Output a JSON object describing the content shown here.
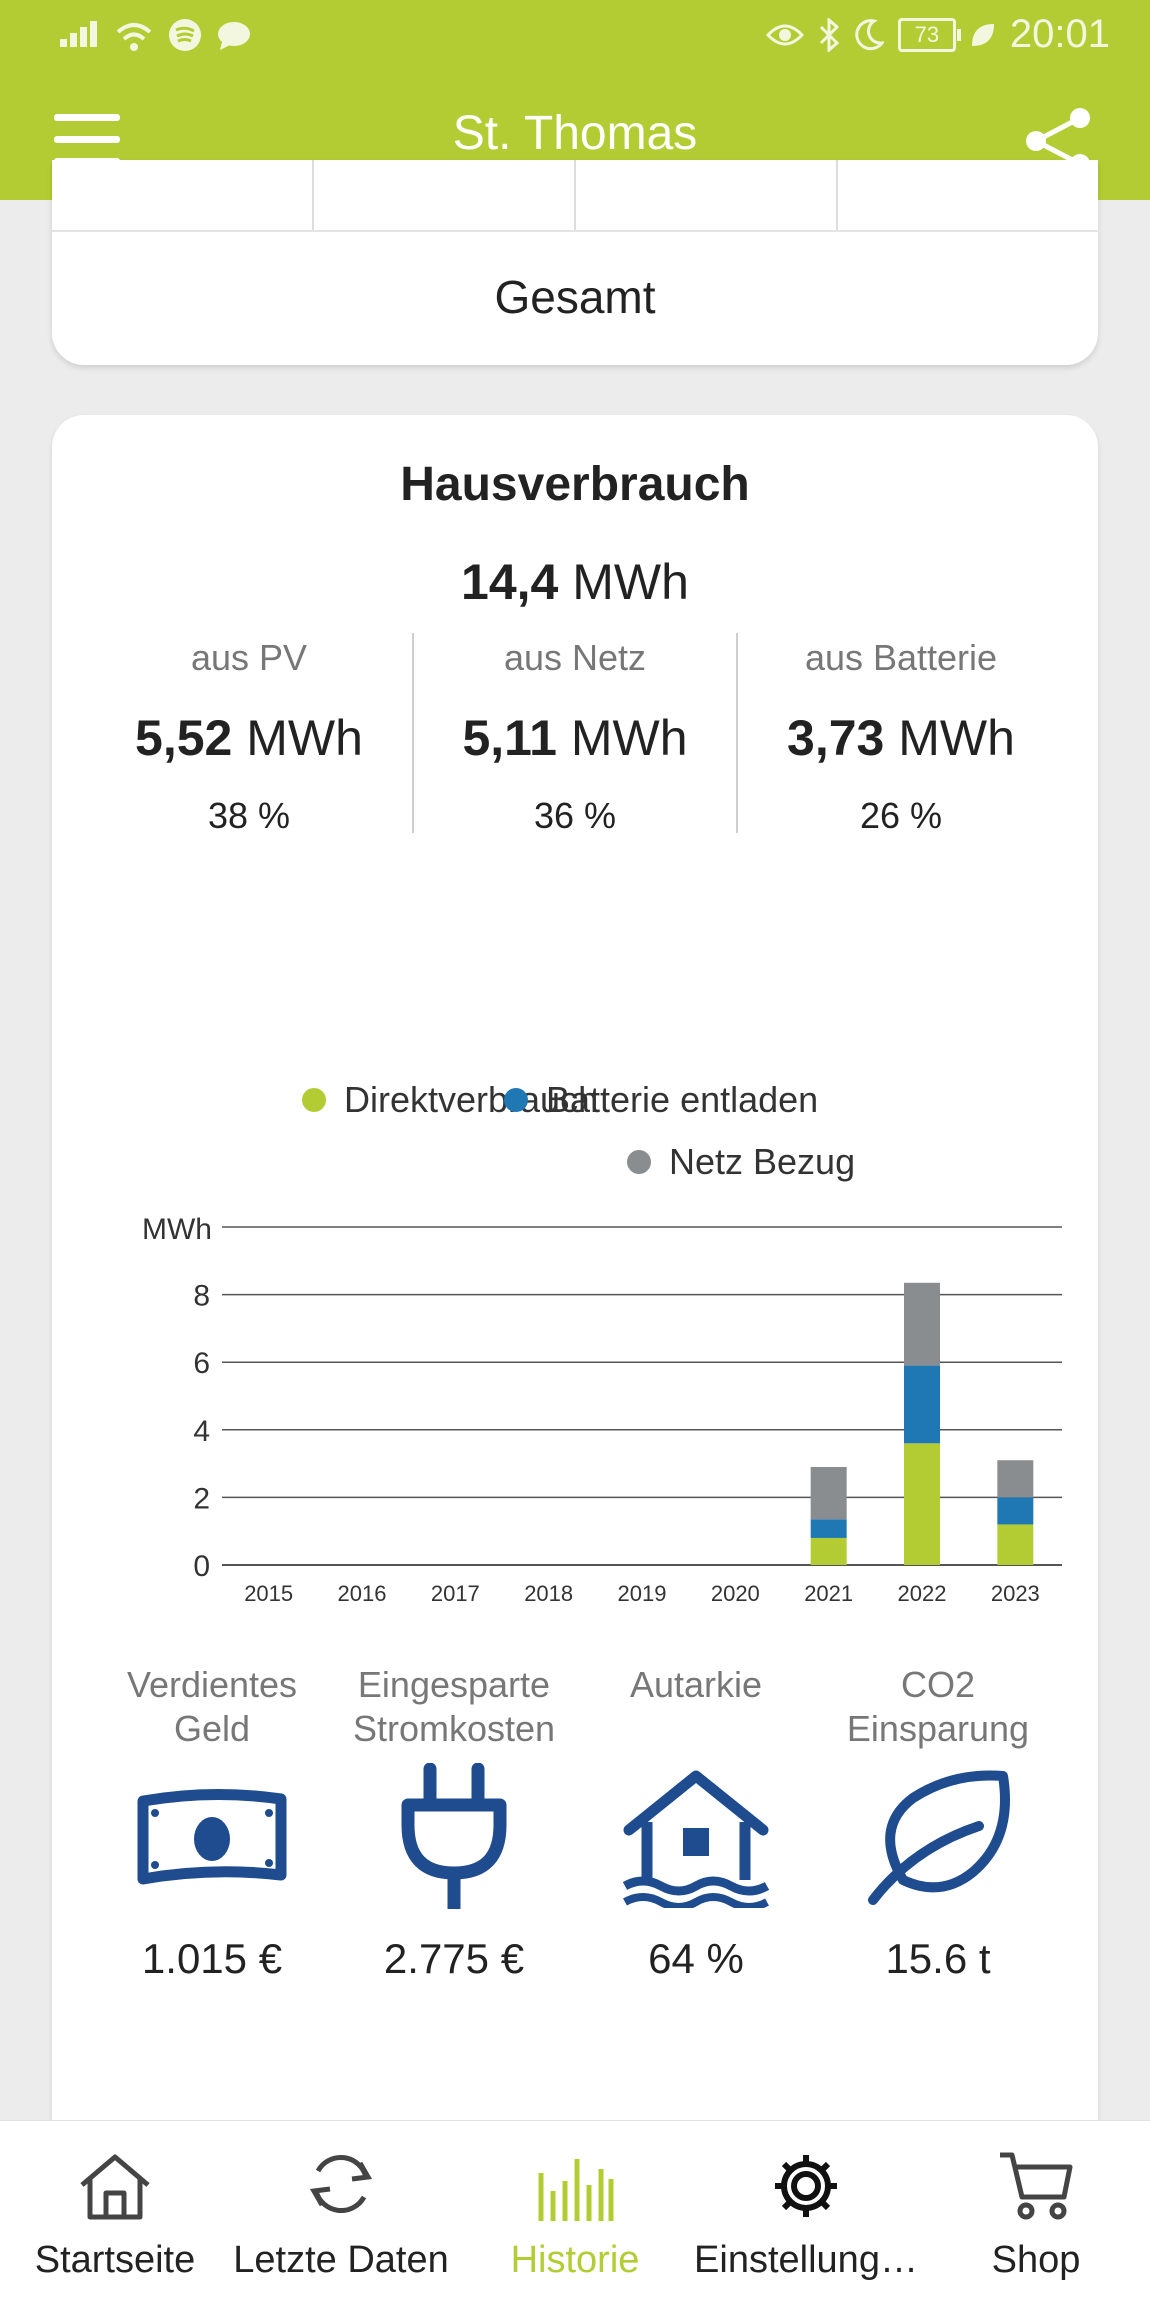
{
  "status_bar": {
    "time": "20:01",
    "battery": "73"
  },
  "app_bar": {
    "title": "St. Thomas"
  },
  "period_card": {
    "selected_label": "Gesamt"
  },
  "consumption": {
    "title": "Hausverbrauch",
    "total_value": "14,4",
    "total_unit": "MWh",
    "columns": [
      {
        "label": "aus PV",
        "value": "5,52",
        "unit": "MWh",
        "percent": "38 %"
      },
      {
        "label": "aus Netz",
        "value": "5,11",
        "unit": "MWh",
        "percent": "36 %"
      },
      {
        "label": "aus Batterie",
        "value": "3,73",
        "unit": "MWh",
        "percent": "26 %"
      }
    ]
  },
  "legend": [
    {
      "label": "Direktverbrauch",
      "color": "#b4cc33"
    },
    {
      "label": "Batterie entladen",
      "color": "#1f78b4"
    },
    {
      "label": "Netz Bezug",
      "color": "#8a8d8f"
    }
  ],
  "chart_data": {
    "type": "bar",
    "stacked": true,
    "ylabel": "MWh",
    "ylim": [
      0,
      10
    ],
    "yticks": [
      0,
      2,
      4,
      6,
      8
    ],
    "categories": [
      "2015",
      "2016",
      "2017",
      "2018",
      "2019",
      "2020",
      "2021",
      "2022",
      "2023"
    ],
    "series": [
      {
        "name": "Direktverbrauch",
        "color": "#b4cc33",
        "values": [
          0,
          0,
          0,
          0,
          0,
          0,
          0.8,
          3.6,
          1.2
        ]
      },
      {
        "name": "Batterie entladen",
        "color": "#1f78b4",
        "values": [
          0,
          0,
          0,
          0,
          0,
          0,
          0.55,
          2.3,
          0.8
        ]
      },
      {
        "name": "Netz Bezug",
        "color": "#8a8d8f",
        "values": [
          0,
          0,
          0,
          0,
          0,
          0,
          1.55,
          2.45,
          1.1
        ]
      }
    ],
    "legend_position": "top"
  },
  "stats": [
    {
      "label": "Verdientes\nGeld",
      "icon": "money-icon",
      "value": "1.015 €"
    },
    {
      "label": "Eingesparte\nStromkosten",
      "icon": "plug-icon",
      "value": "2.775 €"
    },
    {
      "label": "Autarkie",
      "icon": "house-water-icon",
      "value": "64 %"
    },
    {
      "label": "CO2\nEinsparung",
      "icon": "leaf-icon",
      "value": "15.6 t"
    }
  ],
  "bottom_nav": [
    {
      "label": "Startseite",
      "icon": "home-icon"
    },
    {
      "label": "Letzte Daten",
      "icon": "refresh-icon"
    },
    {
      "label": "Historie",
      "icon": "history-icon",
      "active": true
    },
    {
      "label": "Einstellung…",
      "icon": "gear-icon"
    },
    {
      "label": "Shop",
      "icon": "cart-icon"
    }
  ],
  "colors": {
    "accent": "#b4cc33",
    "icon_blue": "#1f4b8f"
  }
}
